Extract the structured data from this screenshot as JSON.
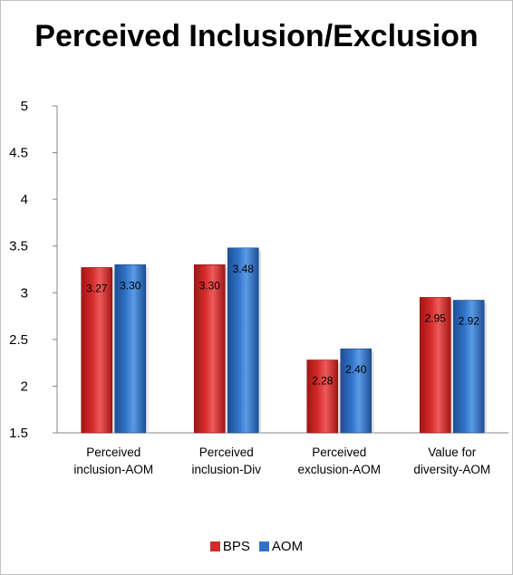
{
  "chart_data": {
    "type": "bar",
    "title": "Perceived Inclusion/Exclusion",
    "categories": [
      [
        "Perceived",
        "inclusion-AOM"
      ],
      [
        "Perceived",
        "inclusion-Div"
      ],
      [
        "Perceived",
        "exclusion-AOM"
      ],
      [
        "Value for",
        "diversity-AOM"
      ]
    ],
    "series": [
      {
        "name": "BPS",
        "color": "#d42a2a",
        "values": [
          3.27,
          3.3,
          2.28,
          2.95
        ],
        "labels": [
          "3.27",
          "3.30",
          "2.28",
          "2.95"
        ]
      },
      {
        "name": "AOM",
        "color": "#2f73c6",
        "values": [
          3.3,
          3.48,
          2.4,
          2.92
        ],
        "labels": [
          "3.30",
          "3.48",
          "2.40",
          "2.92"
        ]
      }
    ],
    "ylim": [
      1.5,
      5
    ],
    "yticks": [
      "5",
      "4.5",
      "4",
      "3.5",
      "3",
      "2.5",
      "2",
      "1.5"
    ],
    "ytick_values": [
      5,
      4.5,
      4,
      3.5,
      3,
      2.5,
      2,
      1.5
    ],
    "grid": false,
    "legend": "bottom",
    "xlabel": "",
    "ylabel": ""
  }
}
